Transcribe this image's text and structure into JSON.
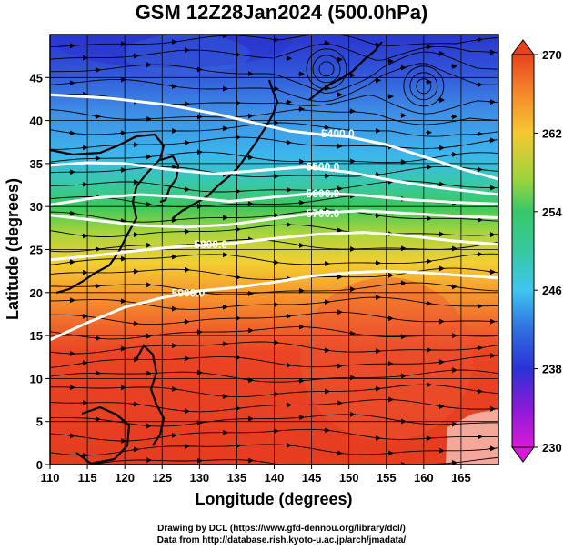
{
  "title": "GSM 12Z28Jan2024 (500.0hPa)",
  "credits": [
    "Drawing by DCL (https://www.gfd-dennou.org/library/dcl/)",
    "Data from http://database.rish.kyoto-u.ac.jp/arch/jmadata/"
  ],
  "chart_data": {
    "type": "heatmap",
    "title": "GSM 12Z28Jan2024 (500.0hPa)",
    "xlabel": "Longitude (degrees)",
    "ylabel": "Latitude  (degrees)",
    "xlim": [
      110,
      170
    ],
    "ylim": [
      0,
      50
    ],
    "xticks": [
      110,
      115,
      120,
      125,
      130,
      135,
      140,
      145,
      150,
      155,
      160,
      165
    ],
    "yticks": [
      0,
      5,
      10,
      15,
      20,
      25,
      30,
      35,
      40,
      45
    ],
    "grid": true,
    "colorbar": {
      "min": 230,
      "max": 270,
      "ticks": [
        230,
        238,
        246,
        254,
        262,
        270
      ],
      "colors": [
        "#d81ad8",
        "#2b32d6",
        "#3ec6f0",
        "#37c86a",
        "#f5c832",
        "#e8411e"
      ]
    },
    "height_contours": [
      {
        "label": "5400.0",
        "label_lon": 148.5,
        "label_lat": 38.5,
        "points": [
          [
            110,
            43
          ],
          [
            118,
            42.6
          ],
          [
            126,
            41.8
          ],
          [
            132,
            40.8
          ],
          [
            138,
            39.6
          ],
          [
            142,
            38.8
          ],
          [
            146,
            38.4
          ],
          [
            150,
            38.1
          ],
          [
            155,
            37.2
          ],
          [
            160,
            35.8
          ],
          [
            165,
            34.4
          ],
          [
            170,
            33.2
          ]
        ]
      },
      {
        "label": "5500.0",
        "label_lon": 146.5,
        "label_lat": 34.6,
        "points": [
          [
            110,
            34.8
          ],
          [
            115,
            35.1
          ],
          [
            120,
            35
          ],
          [
            126,
            34.3
          ],
          [
            132,
            33.8
          ],
          [
            138,
            34.2
          ],
          [
            144,
            34.6
          ],
          [
            150,
            34
          ],
          [
            156,
            33
          ],
          [
            162,
            32.2
          ],
          [
            170,
            31.4
          ]
        ]
      },
      {
        "label": "5600.0",
        "label_lon": 146.5,
        "label_lat": 31.5,
        "points": [
          [
            110,
            30.2
          ],
          [
            116,
            31
          ],
          [
            122,
            31.4
          ],
          [
            128,
            31.1
          ],
          [
            134,
            30.6
          ],
          [
            140,
            31.1
          ],
          [
            146,
            31.6
          ],
          [
            152,
            31.3
          ],
          [
            158,
            30.8
          ],
          [
            164,
            30.5
          ],
          [
            170,
            30.3
          ]
        ]
      },
      {
        "label": "5700.0",
        "label_lon": 146.5,
        "label_lat": 29.2,
        "points": [
          [
            110,
            29
          ],
          [
            116,
            28.4
          ],
          [
            122,
            27.8
          ],
          [
            128,
            27.6
          ],
          [
            134,
            27.9
          ],
          [
            140,
            28.6
          ],
          [
            146,
            29.3
          ],
          [
            152,
            29.5
          ],
          [
            158,
            29.2
          ],
          [
            164,
            28.9
          ],
          [
            170,
            28.7
          ]
        ]
      },
      {
        "label": "5800.0",
        "label_lon": 131.5,
        "label_lat": 25.6,
        "points": [
          [
            110,
            23.8
          ],
          [
            116,
            24.3
          ],
          [
            122,
            24.9
          ],
          [
            128,
            25.4
          ],
          [
            134,
            25.7
          ],
          [
            140,
            26.3
          ],
          [
            146,
            26.8
          ],
          [
            152,
            27
          ],
          [
            158,
            26.6
          ],
          [
            164,
            26
          ],
          [
            170,
            25.6
          ]
        ]
      },
      {
        "label": "5900.0",
        "label_lon": 128.5,
        "label_lat": 19.9,
        "points": [
          [
            110,
            14.5
          ],
          [
            115,
            16.5
          ],
          [
            120,
            18.3
          ],
          [
            125,
            19.4
          ],
          [
            130,
            20.2
          ],
          [
            135,
            20.6
          ],
          [
            140,
            21.2
          ],
          [
            145,
            21.9
          ],
          [
            150,
            22.3
          ],
          [
            155,
            22.5
          ],
          [
            160,
            22.3
          ],
          [
            165,
            22
          ],
          [
            170,
            21.7
          ]
        ]
      }
    ],
    "low_centers": [
      [
        147,
        46
      ],
      [
        160,
        44
      ]
    ]
  },
  "colorbar_labels": [
    "270",
    "262",
    "254",
    "246",
    "238",
    "230"
  ]
}
